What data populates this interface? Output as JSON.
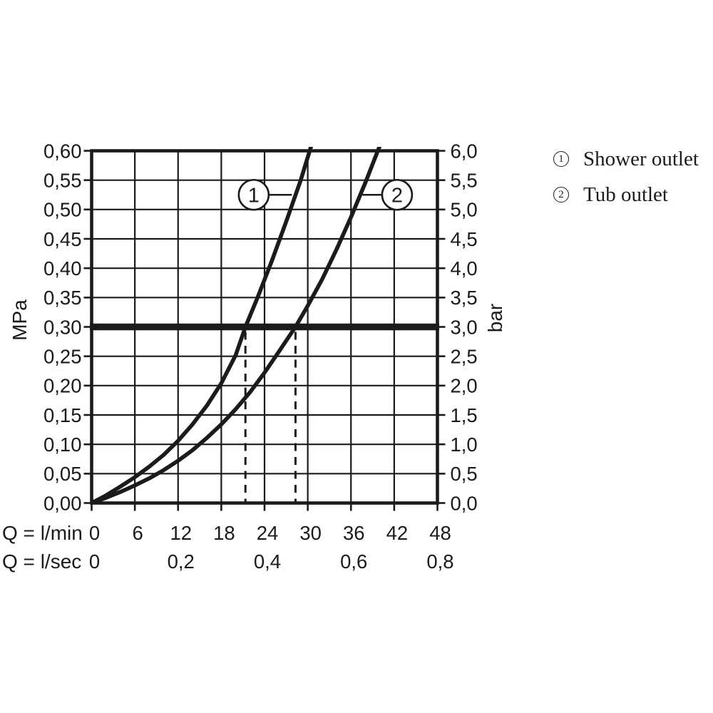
{
  "page": {
    "background_color": "#ffffff",
    "ink_color": "#1b1b1b"
  },
  "legend": {
    "items": [
      {
        "symbol": "1",
        "label": "Shower outlet"
      },
      {
        "symbol": "2",
        "label": "Tub outlet"
      }
    ]
  },
  "chart_data": {
    "type": "line",
    "x_axis": {
      "row1_label": "Q = l/min",
      "row1_ticks": [
        {
          "q": 0,
          "text": "0"
        },
        {
          "q": 6,
          "text": "6"
        },
        {
          "q": 12,
          "text": "12"
        },
        {
          "q": 18,
          "text": "18"
        },
        {
          "q": 24,
          "text": "24"
        },
        {
          "q": 30,
          "text": "30"
        },
        {
          "q": 36,
          "text": "36"
        },
        {
          "q": 42,
          "text": "42"
        },
        {
          "q": 48,
          "text": "48"
        }
      ],
      "row2_label": "Q = l/sec",
      "row2_ticks": [
        {
          "q": 0,
          "text": "0"
        },
        {
          "q": 12,
          "text": "0,2"
        },
        {
          "q": 24,
          "text": "0,4"
        },
        {
          "q": 36,
          "text": "0,6"
        },
        {
          "q": 48,
          "text": "0,8"
        }
      ],
      "range_lmin": [
        0,
        48
      ],
      "grid_step_lmin": 6
    },
    "y_axis_left": {
      "label": "MPa",
      "range_mpa": [
        0,
        0.6
      ],
      "grid_step_mpa": 0.05,
      "ticks": [
        {
          "mpa": 0.6,
          "text": "0,60"
        },
        {
          "mpa": 0.55,
          "text": "0,55"
        },
        {
          "mpa": 0.5,
          "text": "0,50"
        },
        {
          "mpa": 0.45,
          "text": "0,45"
        },
        {
          "mpa": 0.4,
          "text": "0,40"
        },
        {
          "mpa": 0.35,
          "text": "0,35"
        },
        {
          "mpa": 0.3,
          "text": "0,30"
        },
        {
          "mpa": 0.25,
          "text": "0,25"
        },
        {
          "mpa": 0.2,
          "text": "0,20"
        },
        {
          "mpa": 0.15,
          "text": "0,15"
        },
        {
          "mpa": 0.1,
          "text": "0,10"
        },
        {
          "mpa": 0.05,
          "text": "0,05"
        },
        {
          "mpa": 0.0,
          "text": "0,00"
        }
      ]
    },
    "y_axis_right": {
      "label": "bar",
      "range_bar": [
        0,
        6
      ],
      "ticks": [
        {
          "bar": 6.0,
          "text": "6,0"
        },
        {
          "bar": 5.5,
          "text": "5,5"
        },
        {
          "bar": 5.0,
          "text": "5,0"
        },
        {
          "bar": 4.5,
          "text": "4,5"
        },
        {
          "bar": 4.0,
          "text": "4,0"
        },
        {
          "bar": 3.5,
          "text": "3,5"
        },
        {
          "bar": 3.0,
          "text": "3,0"
        },
        {
          "bar": 2.5,
          "text": "2,5"
        },
        {
          "bar": 2.0,
          "text": "2,0"
        },
        {
          "bar": 1.5,
          "text": "1,5"
        },
        {
          "bar": 1.0,
          "text": "1,0"
        },
        {
          "bar": 0.5,
          "text": "0,5"
        },
        {
          "bar": 0.0,
          "text": "0,0"
        }
      ]
    },
    "reference_line": {
      "mpa": 0.3,
      "bar": 3.0
    },
    "dashed_guides_lmin": [
      21.35,
      28.3
    ],
    "series": [
      {
        "id": "1",
        "name": "Shower outlet",
        "flow_at_3bar_lmin": 21.35,
        "points_lmin_mpa": [
          [
            0,
            0
          ],
          [
            2,
            0.013
          ],
          [
            4,
            0.028
          ],
          [
            6,
            0.044
          ],
          [
            8,
            0.062
          ],
          [
            10,
            0.082
          ],
          [
            12,
            0.106
          ],
          [
            14,
            0.134
          ],
          [
            16,
            0.166
          ],
          [
            18,
            0.204
          ],
          [
            20,
            0.252
          ],
          [
            21.35,
            0.3
          ],
          [
            23,
            0.349
          ],
          [
            25,
            0.412
          ],
          [
            27,
            0.479
          ],
          [
            29,
            0.549
          ],
          [
            30.9,
            0.625
          ]
        ]
      },
      {
        "id": "2",
        "name": "Tub outlet",
        "flow_at_3bar_lmin": 28.3,
        "points_lmin_mpa": [
          [
            0,
            0
          ],
          [
            2,
            0.009
          ],
          [
            4,
            0.019
          ],
          [
            6,
            0.03
          ],
          [
            8,
            0.042
          ],
          [
            10,
            0.056
          ],
          [
            12,
            0.072
          ],
          [
            14,
            0.09
          ],
          [
            16,
            0.111
          ],
          [
            18,
            0.134
          ],
          [
            20,
            0.16
          ],
          [
            22,
            0.189
          ],
          [
            24,
            0.222
          ],
          [
            26,
            0.258
          ],
          [
            28.3,
            0.3
          ],
          [
            30,
            0.336
          ],
          [
            32,
            0.381
          ],
          [
            34,
            0.432
          ],
          [
            36,
            0.487
          ],
          [
            38,
            0.546
          ],
          [
            40.3,
            0.618
          ]
        ]
      }
    ],
    "callouts": [
      {
        "text": "1",
        "series": "1",
        "center_lmin": 22.5,
        "center_mpa": 0.525,
        "connect_to_lmin": 27.8,
        "side": "right"
      },
      {
        "text": "2",
        "series": "2",
        "center_lmin": 42.4,
        "center_mpa": 0.525,
        "connect_to_lmin": 37.6,
        "side": "left"
      }
    ]
  }
}
